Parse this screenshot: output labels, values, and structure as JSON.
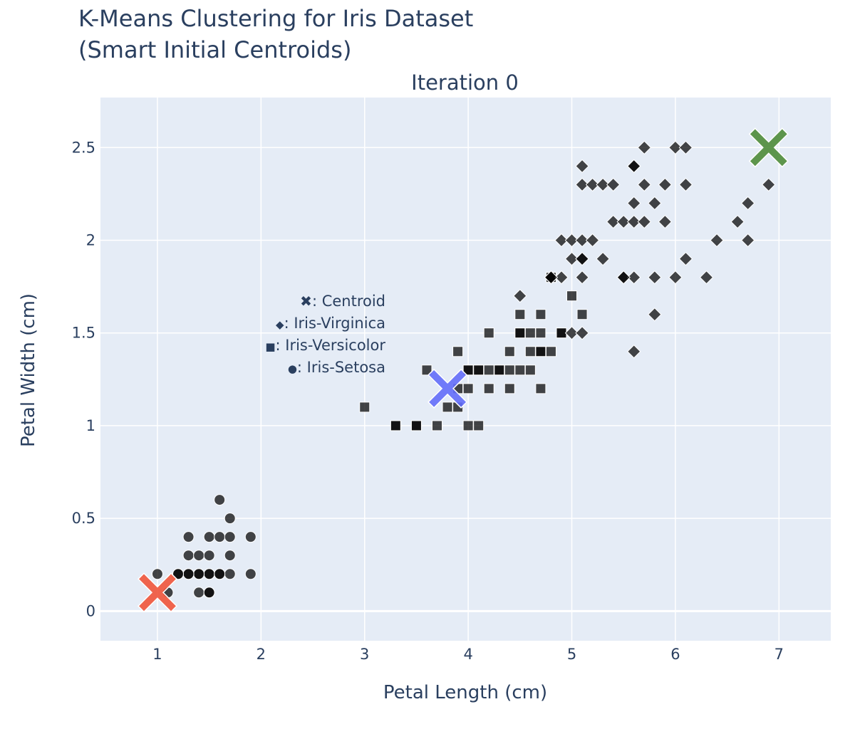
{
  "chart_data": {
    "type": "scatter",
    "title_lines": [
      "K-Means Clustering for Iris Dataset",
      "(Smart Initial Centroids)"
    ],
    "subtitle": "Iteration 0",
    "xlabel": "Petal Length (cm)",
    "ylabel": "Petal Width (cm)",
    "xlim": [
      0.45,
      7.5
    ],
    "ylim": [
      -0.16,
      2.77
    ],
    "x_ticks": [
      1,
      2,
      3,
      4,
      5,
      6,
      7
    ],
    "x_tick_labels": [
      "1",
      "2",
      "3",
      "4",
      "5",
      "6",
      "7"
    ],
    "y_ticks": [
      0,
      0.5,
      1,
      1.5,
      2,
      2.5
    ],
    "y_tick_labels": [
      "0",
      "0.5",
      "1",
      "1.5",
      "2",
      "2.5"
    ],
    "grid": true,
    "plot_bg": "#e5ecf6",
    "legend_annotation": [
      {
        "symbol": "✖",
        "text": ": Centroid"
      },
      {
        "symbol": "◆",
        "text": ": Iris-Virginica"
      },
      {
        "symbol": "■",
        "text": ": Iris-Versicolor"
      },
      {
        "symbol": "●",
        "text": ": Iris-Setosa"
      }
    ],
    "centroids": [
      {
        "x": 1.0,
        "y": 0.1,
        "color": "#ef553b"
      },
      {
        "x": 3.8,
        "y": 1.2,
        "color": "#636efa"
      },
      {
        "x": 6.9,
        "y": 2.5,
        "color": "#4e8c3a"
      }
    ],
    "series": [
      {
        "name": "Iris-Setosa",
        "symbol": "circle",
        "points": [
          [
            1.0,
            0.2
          ],
          [
            1.1,
            0.1
          ],
          [
            1.2,
            0.2
          ],
          [
            1.3,
            0.2
          ],
          [
            1.3,
            0.3
          ],
          [
            1.3,
            0.4
          ],
          [
            1.4,
            0.1
          ],
          [
            1.4,
            0.2
          ],
          [
            1.4,
            0.3
          ],
          [
            1.5,
            0.1
          ],
          [
            1.5,
            0.2
          ],
          [
            1.5,
            0.3
          ],
          [
            1.5,
            0.4
          ],
          [
            1.6,
            0.2
          ],
          [
            1.6,
            0.4
          ],
          [
            1.6,
            0.6
          ],
          [
            1.7,
            0.2
          ],
          [
            1.7,
            0.3
          ],
          [
            1.7,
            0.4
          ],
          [
            1.7,
            0.5
          ],
          [
            1.9,
            0.2
          ],
          [
            1.9,
            0.4
          ],
          [
            1.5,
            0.2
          ],
          [
            1.4,
            0.2
          ],
          [
            1.3,
            0.2
          ],
          [
            1.6,
            0.2
          ],
          [
            1.2,
            0.2
          ],
          [
            1.5,
            0.1
          ]
        ]
      },
      {
        "name": "Iris-Versicolor",
        "symbol": "square",
        "points": [
          [
            3.0,
            1.1
          ],
          [
            3.3,
            1.0
          ],
          [
            3.5,
            1.0
          ],
          [
            3.6,
            1.3
          ],
          [
            3.7,
            1.0
          ],
          [
            3.8,
            1.1
          ],
          [
            3.9,
            1.1
          ],
          [
            3.9,
            1.2
          ],
          [
            3.9,
            1.4
          ],
          [
            4.0,
            1.0
          ],
          [
            4.0,
            1.2
          ],
          [
            4.0,
            1.3
          ],
          [
            4.1,
            1.0
          ],
          [
            4.1,
            1.3
          ],
          [
            4.2,
            1.2
          ],
          [
            4.2,
            1.3
          ],
          [
            4.2,
            1.5
          ],
          [
            4.3,
            1.3
          ],
          [
            4.4,
            1.2
          ],
          [
            4.4,
            1.3
          ],
          [
            4.4,
            1.4
          ],
          [
            4.5,
            1.3
          ],
          [
            4.5,
            1.5
          ],
          [
            4.5,
            1.6
          ],
          [
            4.6,
            1.3
          ],
          [
            4.6,
            1.4
          ],
          [
            4.6,
            1.5
          ],
          [
            4.7,
            1.2
          ],
          [
            4.7,
            1.4
          ],
          [
            4.7,
            1.5
          ],
          [
            4.7,
            1.6
          ],
          [
            4.8,
            1.4
          ],
          [
            4.8,
            1.8
          ],
          [
            4.9,
            1.5
          ],
          [
            5.0,
            1.7
          ],
          [
            5.1,
            1.6
          ],
          [
            4.0,
            1.3
          ],
          [
            4.5,
            1.5
          ],
          [
            4.7,
            1.4
          ],
          [
            3.3,
            1.0
          ],
          [
            3.5,
            1.0
          ],
          [
            4.1,
            1.3
          ],
          [
            4.3,
            1.3
          ],
          [
            4.9,
            1.5
          ]
        ]
      },
      {
        "name": "Iris-Virginica",
        "symbol": "diamond",
        "points": [
          [
            4.5,
            1.7
          ],
          [
            4.8,
            1.8
          ],
          [
            4.9,
            1.8
          ],
          [
            4.9,
            2.0
          ],
          [
            5.0,
            1.5
          ],
          [
            5.0,
            1.9
          ],
          [
            5.0,
            2.0
          ],
          [
            5.1,
            1.5
          ],
          [
            5.1,
            1.8
          ],
          [
            5.1,
            1.9
          ],
          [
            5.1,
            2.0
          ],
          [
            5.1,
            2.3
          ],
          [
            5.1,
            2.4
          ],
          [
            5.2,
            2.0
          ],
          [
            5.2,
            2.3
          ],
          [
            5.3,
            1.9
          ],
          [
            5.3,
            2.3
          ],
          [
            5.4,
            2.1
          ],
          [
            5.4,
            2.3
          ],
          [
            5.5,
            1.8
          ],
          [
            5.5,
            2.1
          ],
          [
            5.6,
            1.4
          ],
          [
            5.6,
            1.8
          ],
          [
            5.6,
            2.1
          ],
          [
            5.6,
            2.2
          ],
          [
            5.6,
            2.4
          ],
          [
            5.7,
            2.1
          ],
          [
            5.7,
            2.3
          ],
          [
            5.7,
            2.5
          ],
          [
            5.8,
            1.6
          ],
          [
            5.8,
            1.8
          ],
          [
            5.8,
            2.2
          ],
          [
            5.9,
            2.1
          ],
          [
            5.9,
            2.3
          ],
          [
            6.0,
            1.8
          ],
          [
            6.0,
            2.5
          ],
          [
            6.1,
            1.9
          ],
          [
            6.1,
            2.3
          ],
          [
            6.1,
            2.5
          ],
          [
            6.3,
            1.8
          ],
          [
            6.4,
            2.0
          ],
          [
            6.6,
            2.1
          ],
          [
            6.7,
            2.0
          ],
          [
            6.7,
            2.2
          ],
          [
            6.9,
            2.3
          ],
          [
            4.8,
            1.8
          ],
          [
            5.5,
            1.8
          ],
          [
            5.1,
            1.9
          ],
          [
            5.6,
            2.4
          ]
        ]
      }
    ]
  }
}
